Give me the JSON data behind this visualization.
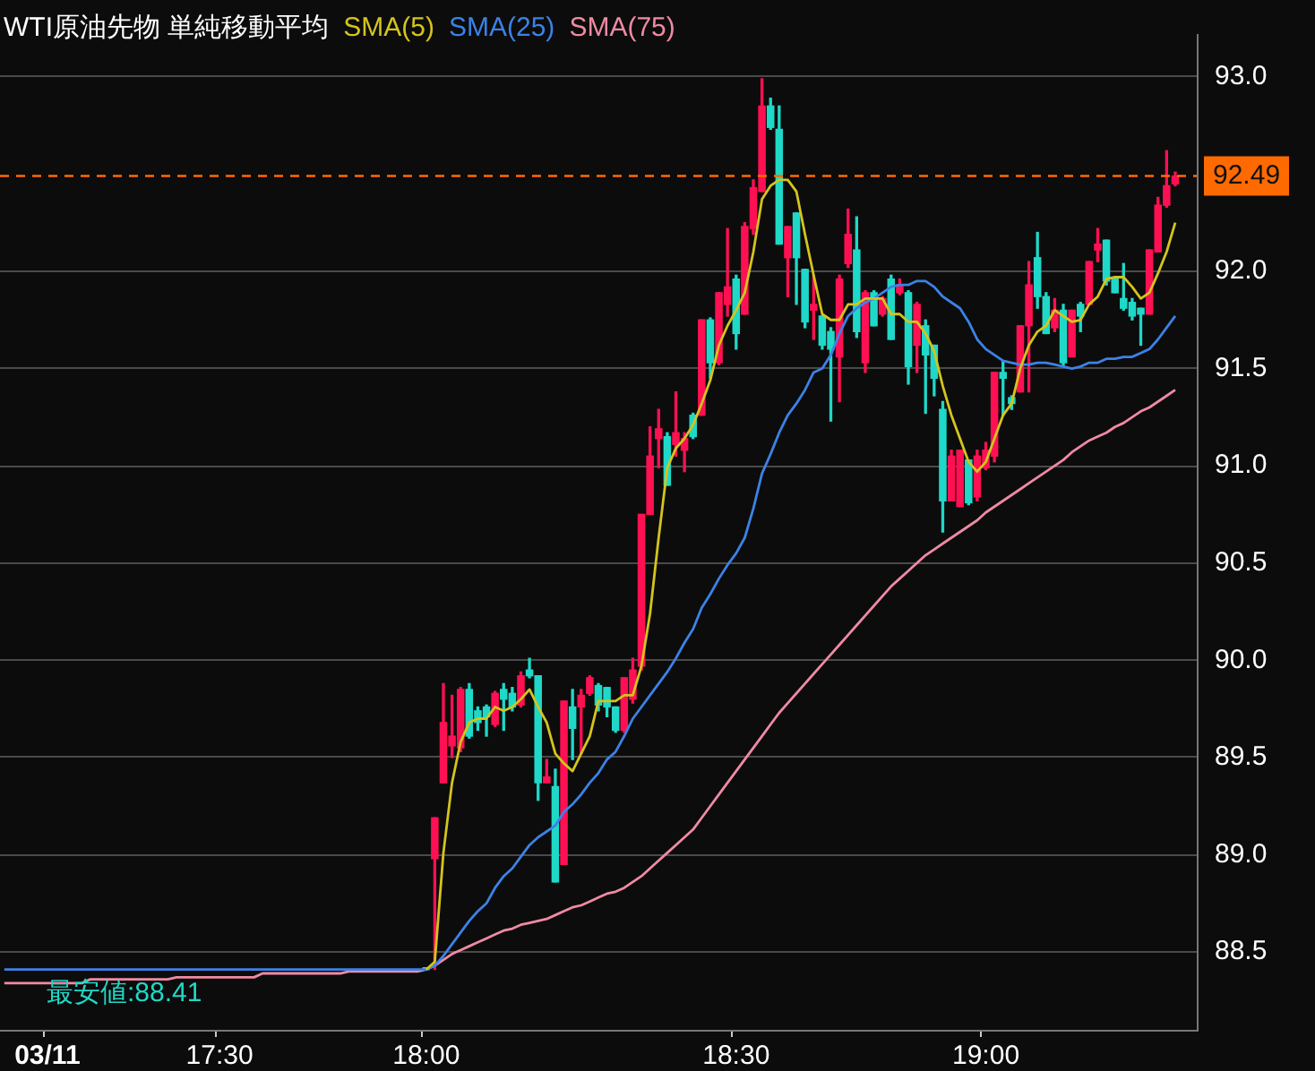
{
  "chart_data": {
    "type": "candlestick",
    "title": "WTI原油先物 単純移動平均",
    "categories": [
      null,
      null,
      null,
      null,
      null,
      "03/11",
      null,
      null,
      null,
      null,
      null,
      null,
      null,
      null,
      null,
      null,
      null,
      null,
      null,
      null,
      null,
      null,
      null,
      null,
      null,
      "17:30",
      null,
      null,
      null,
      null,
      null,
      null,
      null,
      null,
      null,
      null,
      null,
      null,
      null,
      null,
      null,
      null,
      null,
      null,
      null,
      null,
      null,
      null,
      null,
      "18:00",
      null,
      null,
      null,
      null,
      null,
      null,
      null,
      null,
      null,
      null,
      null,
      null,
      null,
      null,
      null,
      null,
      null,
      null,
      null,
      null,
      null,
      null,
      null,
      null,
      null,
      null,
      null,
      null,
      null,
      null,
      null,
      null,
      null,
      null,
      null,
      "18:30",
      null,
      null,
      null,
      null,
      null,
      null,
      null,
      null,
      null,
      null,
      null,
      null,
      null,
      null,
      null,
      null,
      null,
      null,
      null,
      null,
      null,
      null,
      null,
      null,
      null,
      null,
      null,
      null,
      "19:00",
      null,
      null,
      null,
      null,
      null,
      null,
      null,
      null,
      null,
      null,
      null,
      null,
      null,
      null,
      null,
      null,
      null,
      null,
      null,
      null,
      null,
      null,
      null,
      null
    ],
    "ohlc": [
      null,
      null,
      null,
      null,
      null,
      null,
      null,
      null,
      null,
      null,
      null,
      null,
      null,
      null,
      null,
      null,
      null,
      null,
      null,
      null,
      null,
      null,
      null,
      null,
      null,
      null,
      null,
      null,
      null,
      null,
      null,
      null,
      null,
      null,
      null,
      null,
      null,
      null,
      null,
      null,
      null,
      null,
      null,
      null,
      null,
      null,
      null,
      null,
      null,
      [
        88.41,
        88.41,
        88.41,
        88.41
      ],
      [
        88.98,
        89.19,
        88.41,
        89.19
      ],
      [
        89.37,
        89.88,
        89.37,
        89.68
      ],
      [
        89.56,
        89.82,
        89.5,
        89.61
      ],
      [
        89.55,
        89.86,
        89.53,
        89.85
      ],
      [
        89.85,
        89.88,
        89.6,
        89.61
      ],
      [
        89.74,
        89.76,
        89.64,
        89.68
      ],
      [
        89.76,
        89.77,
        89.61,
        89.71
      ],
      [
        89.67,
        89.84,
        89.66,
        89.83
      ],
      [
        89.85,
        89.88,
        89.64,
        89.8
      ],
      [
        89.83,
        89.86,
        89.74,
        89.76
      ],
      [
        89.77,
        89.94,
        89.76,
        89.92
      ],
      [
        89.95,
        90.01,
        89.91,
        89.92
      ],
      [
        89.92,
        89.92,
        89.28,
        89.37
      ],
      [
        89.37,
        89.49,
        89.37,
        89.4
      ],
      [
        89.35,
        89.44,
        88.86,
        88.86
      ],
      [
        88.95,
        89.79,
        88.95,
        89.79
      ],
      [
        89.76,
        89.85,
        89.49,
        89.65
      ],
      [
        89.76,
        89.85,
        89.52,
        89.82
      ],
      [
        89.83,
        89.92,
        89.82,
        89.91
      ],
      [
        89.87,
        89.88,
        89.74,
        89.77
      ],
      [
        89.86,
        89.86,
        89.71,
        89.76
      ],
      [
        89.76,
        89.76,
        89.63,
        89.64
      ],
      [
        89.64,
        89.91,
        89.63,
        89.91
      ],
      [
        89.8,
        90.01,
        89.78,
        89.95
      ],
      [
        89.97,
        90.75,
        89.95,
        90.75
      ],
      [
        90.75,
        91.2,
        90.75,
        91.05
      ],
      [
        91.14,
        91.29,
        90.99,
        91.19
      ],
      [
        91.15,
        91.17,
        90.9,
        90.9
      ],
      [
        91.11,
        91.38,
        91.05,
        91.17
      ],
      [
        91.08,
        91.17,
        90.97,
        91.14
      ],
      [
        91.26,
        91.27,
        91.14,
        91.15
      ],
      [
        91.26,
        91.75,
        91.26,
        91.75
      ],
      [
        91.75,
        91.76,
        91.45,
        91.53
      ],
      [
        91.53,
        91.89,
        91.52,
        91.89
      ],
      [
        91.83,
        92.22,
        91.77,
        91.92
      ],
      [
        91.96,
        91.98,
        91.6,
        91.68
      ],
      [
        91.78,
        92.25,
        91.78,
        92.23
      ],
      [
        92.22,
        92.47,
        92.19,
        92.43
      ],
      [
        92.41,
        92.99,
        92.41,
        92.85
      ],
      [
        92.85,
        92.89,
        92.73,
        92.74
      ],
      [
        92.73,
        92.85,
        92.14,
        92.14
      ],
      [
        92.07,
        92.23,
        91.87,
        92.23
      ],
      [
        92.3,
        92.3,
        91.83,
        92.07
      ],
      [
        92.01,
        92.01,
        91.71,
        91.74
      ],
      [
        91.8,
        91.98,
        91.65,
        91.83
      ],
      [
        91.77,
        91.77,
        91.6,
        91.62
      ],
      [
        91.69,
        91.71,
        91.23,
        91.6
      ],
      [
        91.56,
        91.98,
        91.33,
        91.96
      ],
      [
        92.04,
        92.32,
        92.02,
        92.19
      ],
      [
        92.11,
        92.28,
        91.66,
        91.69
      ],
      [
        91.53,
        91.9,
        91.48,
        91.89
      ],
      [
        91.89,
        91.9,
        91.72,
        91.72
      ],
      [
        91.78,
        91.87,
        91.77,
        91.86
      ],
      [
        91.96,
        91.98,
        91.65,
        91.65
      ],
      [
        91.89,
        91.96,
        91.88,
        91.93
      ],
      [
        91.89,
        91.9,
        91.42,
        91.51
      ],
      [
        91.62,
        91.84,
        91.48,
        91.83
      ],
      [
        91.72,
        91.75,
        91.27,
        91.57
      ],
      [
        91.62,
        91.62,
        91.36,
        91.45
      ],
      [
        91.29,
        91.33,
        90.66,
        90.82
      ],
      [
        90.82,
        91.08,
        90.82,
        91.05
      ],
      [
        90.79,
        91.08,
        90.79,
        91.08
      ],
      [
        91.03,
        91.03,
        90.8,
        90.81
      ],
      [
        90.84,
        91.08,
        90.82,
        91.05
      ],
      [
        90.99,
        91.12,
        90.98,
        91.08
      ],
      [
        91.05,
        91.48,
        91.02,
        91.48
      ],
      [
        91.48,
        91.54,
        91.26,
        91.45
      ],
      [
        91.35,
        91.36,
        91.29,
        91.32
      ],
      [
        91.38,
        91.72,
        91.38,
        91.72
      ],
      [
        91.72,
        92.05,
        91.38,
        91.93
      ],
      [
        92.07,
        92.2,
        91.81,
        91.87
      ],
      [
        91.87,
        91.89,
        91.68,
        91.68
      ],
      [
        91.71,
        91.86,
        91.69,
        91.8
      ],
      [
        91.8,
        91.83,
        91.51,
        91.53
      ],
      [
        91.56,
        91.8,
        91.56,
        91.8
      ],
      [
        91.83,
        91.84,
        91.69,
        91.77
      ],
      [
        91.83,
        92.05,
        91.83,
        92.05
      ],
      [
        92.11,
        92.22,
        92.05,
        92.14
      ],
      [
        92.16,
        92.16,
        91.93,
        91.95
      ],
      [
        91.96,
        91.96,
        91.89,
        91.89
      ],
      [
        91.86,
        92.04,
        91.8,
        91.81
      ],
      [
        91.84,
        91.86,
        91.75,
        91.77
      ],
      [
        91.81,
        91.81,
        91.62,
        91.78
      ],
      [
        91.78,
        92.11,
        91.78,
        92.11
      ],
      [
        92.1,
        92.38,
        92.1,
        92.34
      ],
      [
        92.34,
        92.62,
        92.33,
        92.44
      ],
      [
        92.45,
        92.51,
        92.44,
        92.49
      ],
      null,
      null
    ],
    "colors": [
      "#1fd8c8",
      "#1fd8c8",
      "#1fd8c8",
      "#1fd8c8",
      "#1fd8c8",
      "#1fd8c8",
      "#1fd8c8",
      "#1fd8c8",
      "#1fd8c8",
      "#1fd8c8",
      "#1fd8c8",
      "#1fd8c8",
      "#1fd8c8",
      "#1fd8c8",
      "#1fd8c8",
      "#1fd8c8",
      "#1fd8c8",
      "#1fd8c8",
      "#1fd8c8",
      "#1fd8c8",
      "#1fd8c8",
      "#1fd8c8",
      "#1fd8c8",
      "#1fd8c8",
      "#1fd8c8",
      "#1fd8c8",
      "#1fd8c8",
      "#1fd8c8",
      "#1fd8c8",
      "#1fd8c8",
      "#1fd8c8",
      "#1fd8c8",
      "#1fd8c8",
      "#1fd8c8",
      "#1fd8c8",
      "#1fd8c8",
      "#1fd8c8",
      "#1fd8c8",
      "#1fd8c8",
      "#1fd8c8",
      "#1fd8c8",
      "#1fd8c8",
      "#1fd8c8",
      "#1fd8c8",
      "#1fd8c8",
      "#1fd8c8",
      "#1fd8c8",
      "#1fd8c8",
      "#1fd8c8",
      "#1fd8c8",
      "#ff1053",
      "#ff1053",
      "#ff1053",
      "#ff1053",
      "#1fd8c8",
      "#1fd8c8",
      "#1fd8c8",
      "#ff1053",
      "#1fd8c8",
      "#1fd8c8",
      "#ff1053",
      "#1fd8c8",
      "#1fd8c8",
      "#ff1053",
      "#1fd8c8",
      "#ff1053",
      "#1fd8c8",
      "#ff1053",
      "#ff1053",
      "#1fd8c8",
      "#1fd8c8",
      "#1fd8c8",
      "#ff1053",
      "#ff1053",
      "#ff1053",
      "#ff1053",
      "#ff1053",
      "#1fd8c8",
      "#ff1053",
      "#ff1053",
      "#1fd8c8",
      "#ff1053",
      "#1fd8c8",
      "#ff1053",
      "#ff1053",
      "#1fd8c8",
      "#ff1053",
      "#ff1053",
      "#ff1053",
      "#1fd8c8",
      "#1fd8c8",
      "#ff1053",
      "#1fd8c8",
      "#1fd8c8",
      "#ff1053",
      "#1fd8c8",
      "#1fd8c8",
      "#ff1053",
      "#ff1053",
      "#1fd8c8",
      "#ff1053",
      "#1fd8c8",
      "#ff1053",
      "#1fd8c8",
      "#ff1053",
      "#1fd8c8",
      "#ff1053",
      "#1fd8c8",
      "#1fd8c8",
      "#1fd8c8",
      "#ff1053",
      "#ff1053",
      "#1fd8c8",
      "#ff1053",
      "#ff1053",
      "#ff1053",
      "#1fd8c8",
      "#1fd8c8",
      "#ff1053",
      "#ff1053",
      "#1fd8c8",
      "#1fd8c8",
      "#ff1053",
      "#1fd8c8",
      "#ff1053",
      "#1fd8c8",
      "#ff1053",
      "#ff1053",
      "#1fd8c8",
      "#1fd8c8",
      "#1fd8c8",
      "#1fd8c8",
      "#1fd8c8",
      "#ff1053",
      "#ff1053",
      "#ff1053",
      "#ff1053",
      null,
      null
    ],
    "series": [
      {
        "name": "SMA(5)",
        "type": "line",
        "color": "#d4c41c",
        "values": [
          null,
          null,
          null,
          null,
          null,
          null,
          null,
          null,
          null,
          null,
          null,
          null,
          null,
          null,
          null,
          null,
          null,
          null,
          null,
          null,
          null,
          null,
          null,
          null,
          null,
          null,
          null,
          null,
          null,
          null,
          null,
          null,
          null,
          null,
          null,
          null,
          null,
          null,
          null,
          null,
          null,
          null,
          null,
          null,
          null,
          null,
          null,
          null,
          null,
          88.41,
          88.45,
          89.01,
          89.37,
          89.58,
          89.68,
          89.7,
          89.7,
          89.76,
          89.74,
          89.76,
          89.8,
          89.85,
          89.76,
          89.68,
          89.52,
          89.47,
          89.43,
          89.52,
          89.61,
          89.79,
          89.79,
          89.79,
          89.82,
          89.82,
          89.97,
          90.24,
          90.63,
          90.99,
          91.09,
          91.14,
          91.21,
          91.32,
          91.44,
          91.62,
          91.72,
          91.8,
          91.89,
          92.1,
          92.37,
          92.44,
          92.47,
          92.47,
          92.41,
          92.19,
          91.98,
          91.78,
          91.75,
          91.75,
          91.83,
          91.83,
          91.86,
          91.86,
          91.86,
          91.78,
          91.78,
          91.74,
          91.74,
          91.68,
          91.59,
          91.41,
          91.26,
          91.14,
          91.02,
          90.97,
          91.02,
          91.14,
          91.26,
          91.32,
          91.5,
          91.62,
          91.69,
          91.72,
          91.8,
          91.77,
          91.74,
          91.75,
          91.83,
          91.87,
          91.96,
          91.97,
          91.97,
          91.92,
          91.86,
          91.89,
          91.99,
          92.1,
          92.25,
          null,
          null
        ]
      },
      {
        "name": "SMA(25)",
        "type": "line",
        "color": "#3c82e6",
        "values": [
          88.41,
          88.41,
          88.41,
          88.41,
          88.41,
          88.41,
          88.41,
          88.41,
          88.41,
          88.41,
          88.41,
          88.41,
          88.41,
          88.41,
          88.41,
          88.41,
          88.41,
          88.41,
          88.41,
          88.41,
          88.41,
          88.41,
          88.41,
          88.41,
          88.41,
          88.41,
          88.41,
          88.41,
          88.41,
          88.41,
          88.41,
          88.41,
          88.41,
          88.41,
          88.41,
          88.41,
          88.41,
          88.41,
          88.41,
          88.41,
          88.41,
          88.41,
          88.41,
          88.41,
          88.41,
          88.41,
          88.41,
          88.41,
          88.41,
          88.41,
          88.43,
          88.48,
          88.54,
          88.6,
          88.66,
          88.71,
          88.75,
          88.83,
          88.89,
          88.93,
          88.99,
          89.05,
          89.09,
          89.12,
          89.15,
          89.22,
          89.26,
          89.31,
          89.37,
          89.42,
          89.49,
          89.53,
          89.61,
          89.7,
          89.76,
          89.82,
          89.88,
          89.94,
          90.01,
          90.09,
          90.16,
          90.27,
          90.34,
          90.42,
          90.49,
          90.55,
          90.63,
          90.78,
          90.96,
          91.06,
          91.17,
          91.26,
          91.32,
          91.39,
          91.48,
          91.5,
          91.57,
          91.68,
          91.77,
          91.81,
          91.84,
          91.86,
          91.89,
          91.92,
          91.93,
          91.93,
          91.95,
          91.95,
          91.92,
          91.87,
          91.84,
          91.81,
          91.74,
          91.65,
          91.6,
          91.57,
          91.54,
          91.53,
          91.52,
          91.52,
          91.53,
          91.53,
          91.52,
          91.51,
          91.5,
          91.51,
          91.53,
          91.53,
          91.55,
          91.55,
          91.56,
          91.56,
          91.58,
          91.6,
          91.65,
          91.71,
          91.77,
          null,
          null
        ]
      },
      {
        "name": "SMA(75)",
        "type": "line",
        "color": "#f08aa4",
        "values": [
          88.34,
          88.34,
          88.34,
          88.34,
          88.34,
          88.34,
          88.34,
          88.34,
          88.34,
          88.34,
          88.36,
          88.36,
          88.36,
          88.36,
          88.36,
          88.36,
          88.36,
          88.36,
          88.36,
          88.36,
          88.37,
          88.37,
          88.37,
          88.37,
          88.37,
          88.37,
          88.37,
          88.37,
          88.37,
          88.37,
          88.39,
          88.39,
          88.39,
          88.39,
          88.39,
          88.39,
          88.39,
          88.39,
          88.39,
          88.39,
          88.4,
          88.4,
          88.4,
          88.4,
          88.4,
          88.4,
          88.4,
          88.4,
          88.4,
          88.41,
          88.43,
          88.46,
          88.49,
          88.51,
          88.53,
          88.55,
          88.57,
          88.59,
          88.61,
          88.62,
          88.64,
          88.65,
          88.66,
          88.67,
          88.69,
          88.71,
          88.73,
          88.74,
          88.76,
          88.78,
          88.8,
          88.81,
          88.83,
          88.86,
          88.89,
          88.93,
          88.97,
          89.01,
          89.05,
          89.09,
          89.13,
          89.19,
          89.25,
          89.31,
          89.37,
          89.43,
          89.49,
          89.55,
          89.61,
          89.67,
          89.73,
          89.78,
          89.83,
          89.88,
          89.93,
          89.98,
          90.03,
          90.08,
          90.13,
          90.18,
          90.23,
          90.28,
          90.33,
          90.38,
          90.42,
          90.46,
          90.5,
          90.54,
          90.57,
          90.6,
          90.63,
          90.66,
          90.69,
          90.72,
          90.76,
          90.79,
          90.82,
          90.85,
          90.88,
          90.91,
          90.94,
          90.97,
          91.0,
          91.03,
          91.07,
          91.1,
          91.13,
          91.15,
          91.17,
          91.2,
          91.22,
          91.25,
          91.28,
          91.3,
          91.33,
          91.36,
          91.39,
          null,
          null
        ]
      }
    ],
    "ylim": [
      88.1,
      93.22
    ],
    "yticks": [
      88.5,
      {
        "value": 89,
        "label": "89.0"
      },
      89.5,
      {
        "value": 90,
        "label": "90.0"
      },
      90.5,
      {
        "value": 91,
        "label": "91.0"
      },
      91.5,
      {
        "value": 92,
        "label": "92.0"
      },
      {
        "value": 93,
        "label": "93.0"
      }
    ],
    "grid": "y",
    "legend": "top",
    "ref_lines": [
      {
        "axis": "y",
        "value": 92.49,
        "label": "92.49",
        "color": "#ff6a00",
        "line_style": "dashed"
      }
    ],
    "annotations": [
      "最安値:88.41"
    ]
  }
}
